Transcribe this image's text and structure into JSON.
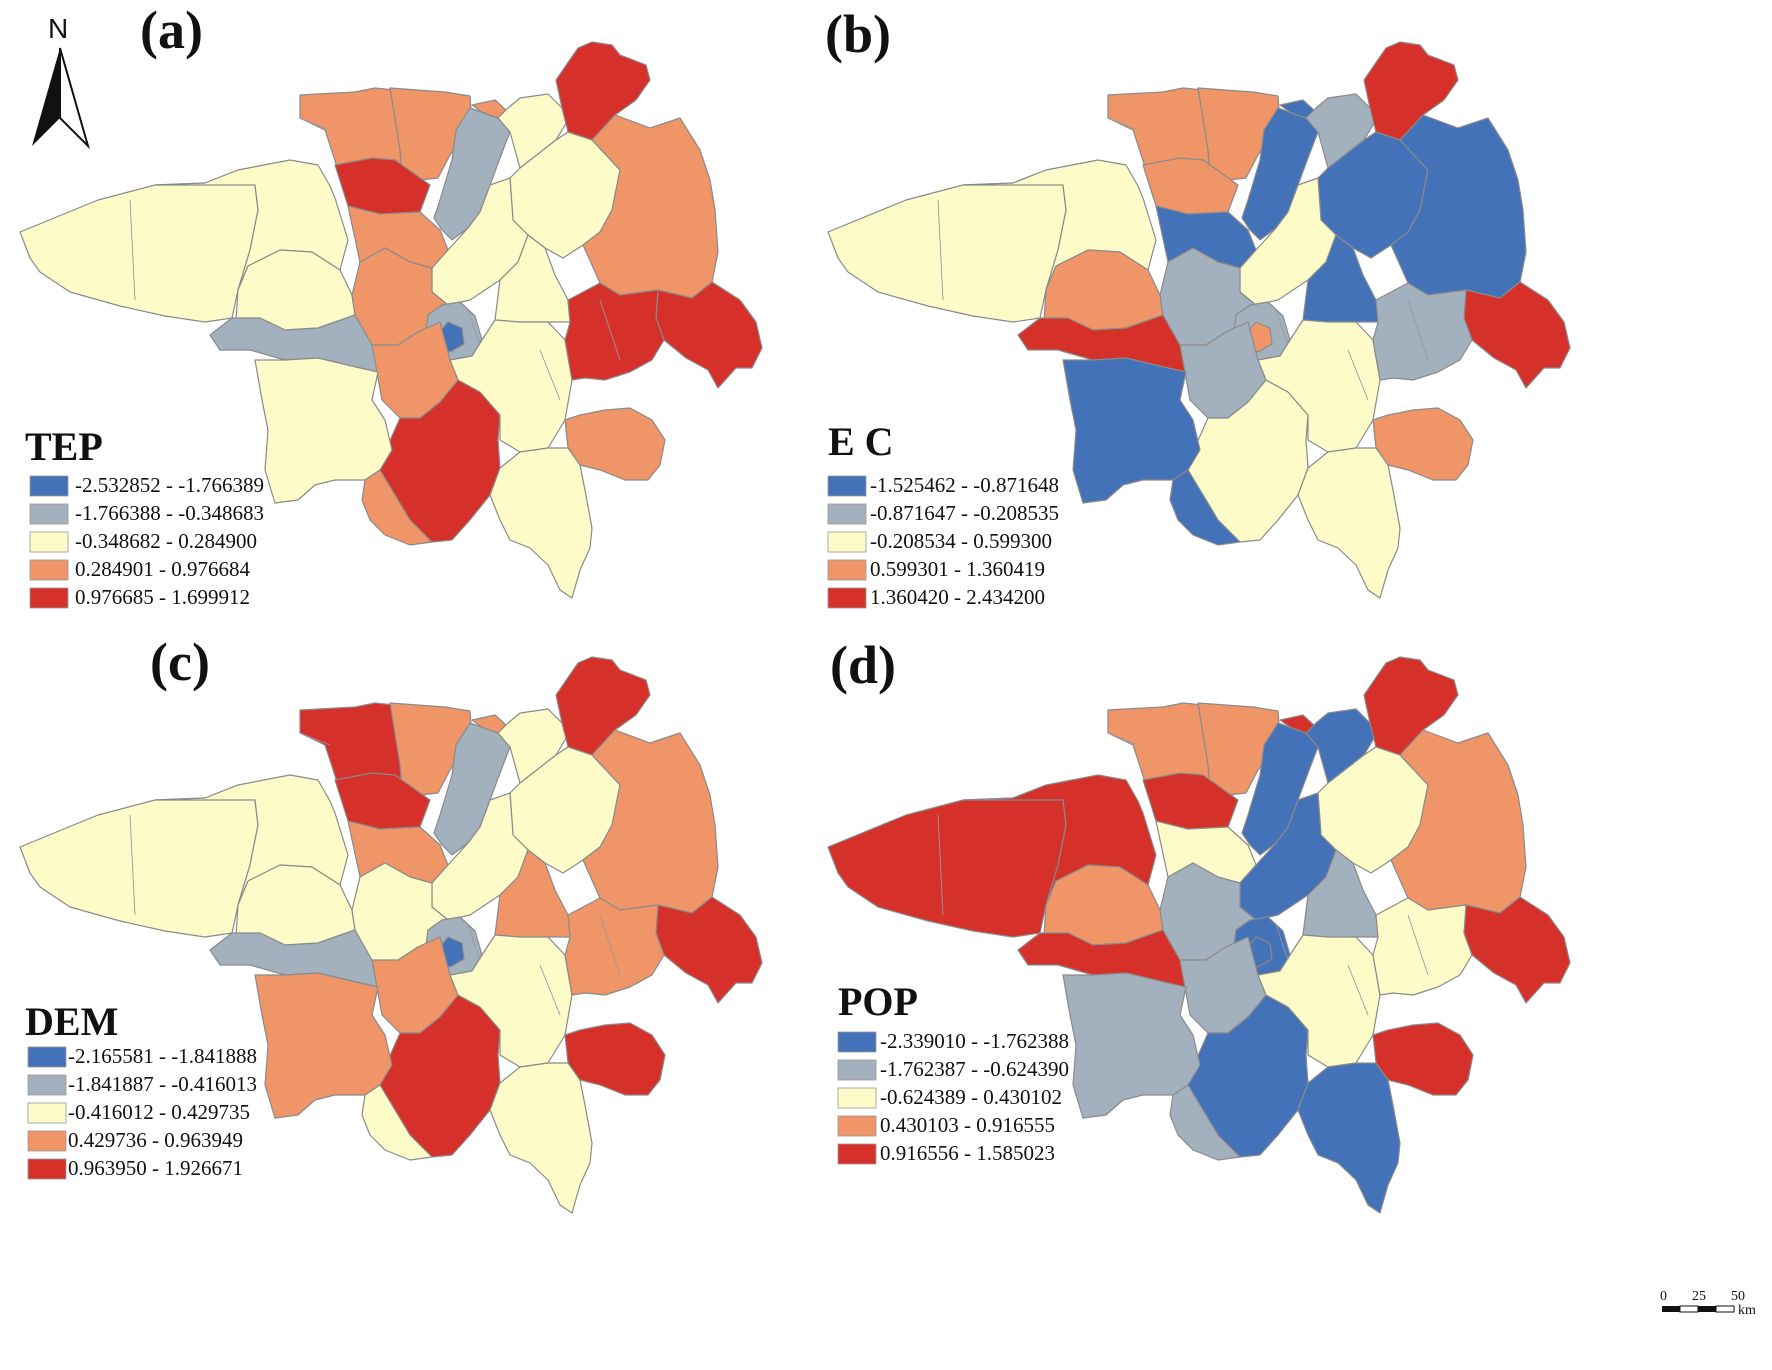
{
  "north_arrow": {
    "label": "N"
  },
  "scale_bar": {
    "ticks": [
      "0",
      "25",
      "50"
    ],
    "unit": "km"
  },
  "colors": {
    "class1": "#4472b8",
    "class2": "#a3b1be",
    "class3": "#fdfcc8",
    "class4": "#ef9568",
    "class5": "#d6302a",
    "outline": "#8a8a8a"
  },
  "panels": [
    {
      "id": "a",
      "label": "(a)",
      "legend_title": "TEP",
      "classes": [
        "-2.532852 - -1.766389",
        "-1.766388 - -0.348683",
        "-0.348682 - 0.284900",
        "0.284901 - 0.976684",
        "0.976685 - 1.699912"
      ],
      "regions": [
        3,
        3,
        3,
        2,
        4,
        4,
        5,
        4,
        2,
        3,
        5,
        3,
        4,
        4,
        3,
        4,
        2,
        1,
        3,
        5,
        4,
        5,
        3,
        4,
        3,
        3,
        4,
        5
      ]
    },
    {
      "id": "b",
      "label": "(b)",
      "legend_title": "E C",
      "classes": [
        "-1.525462 - -0.871648",
        "-0.871647 - -0.208535",
        "-0.208534 - 0.599300",
        "0.599301 - 1.360419",
        "1.360420 - 2.434200"
      ],
      "regions": [
        3,
        3,
        4,
        5,
        4,
        4,
        4,
        1,
        1,
        2,
        5,
        1,
        1,
        1,
        3,
        2,
        2,
        4,
        1,
        5,
        2,
        3,
        3,
        4,
        3,
        1,
        1,
        2
      ]
    },
    {
      "id": "c",
      "label": "(c)",
      "legend_title": "DEM",
      "classes": [
        "-2.165581 - -1.841888",
        "-1.841887 - -0.416013",
        "-0.416012 - 0.429735",
        "0.429736 - 0.963949",
        "0.963950 - 1.926671"
      ],
      "regions": [
        3,
        3,
        3,
        2,
        5,
        4,
        5,
        4,
        2,
        3,
        5,
        3,
        4,
        4,
        3,
        3,
        2,
        1,
        4,
        5,
        4,
        5,
        3,
        5,
        3,
        4,
        3,
        4
      ]
    },
    {
      "id": "d",
      "label": "(d)",
      "legend_title": "POP",
      "classes": [
        "-2.339010 - -1.762388",
        "-1.762387 - -0.624390",
        "-0.624389 - 0.430102",
        "0.430103 - 0.916555",
        "0.916556 - 1.585023"
      ],
      "regions": [
        5,
        5,
        4,
        5,
        4,
        4,
        5,
        5,
        1,
        1,
        5,
        3,
        4,
        3,
        1,
        2,
        1,
        1,
        2,
        5,
        2,
        1,
        3,
        5,
        1,
        2,
        2,
        3
      ]
    }
  ]
}
